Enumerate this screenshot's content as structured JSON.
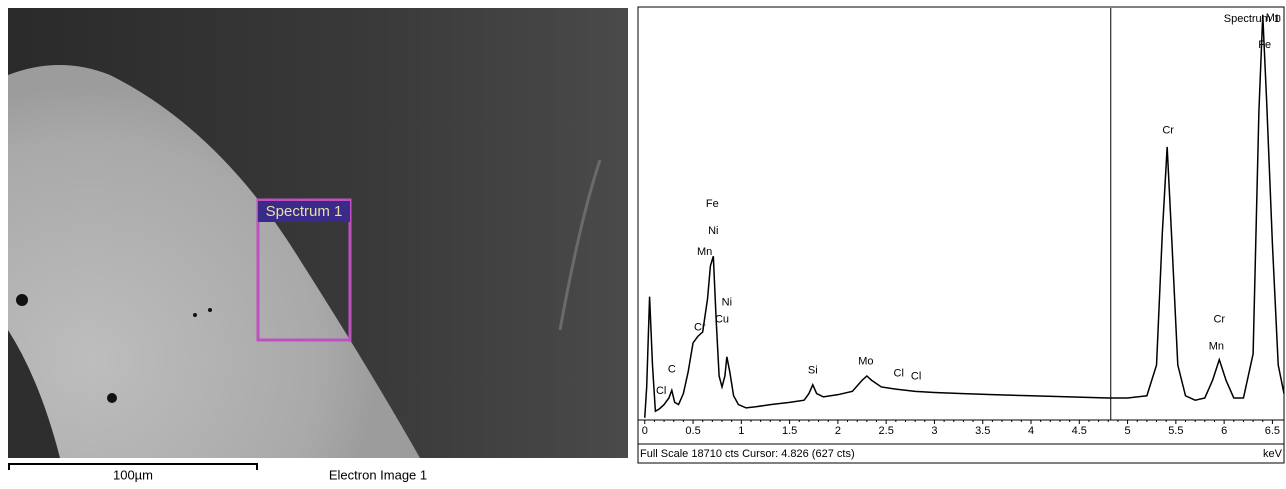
{
  "image": {
    "region_label": "Spectrum 1",
    "scale_bar": "100µm",
    "caption": "Electron Image 1"
  },
  "chart_data": {
    "type": "line",
    "x": [
      0,
      0.02,
      0.05,
      0.08,
      0.11,
      0.15,
      0.2,
      0.25,
      0.28,
      0.31,
      0.35,
      0.4,
      0.45,
      0.5,
      0.55,
      0.6,
      0.65,
      0.68,
      0.71,
      0.74,
      0.77,
      0.8,
      0.83,
      0.85,
      0.88,
      0.92,
      0.97,
      1.05,
      1.15,
      1.3,
      1.5,
      1.65,
      1.7,
      1.74,
      1.78,
      1.85,
      2.0,
      2.15,
      2.25,
      2.3,
      2.35,
      2.45,
      2.6,
      2.8,
      3.0,
      3.3,
      3.6,
      4.0,
      4.4,
      4.8,
      5.0,
      5.2,
      5.3,
      5.36,
      5.41,
      5.46,
      5.52,
      5.6,
      5.7,
      5.8,
      5.88,
      5.95,
      6.02,
      6.1,
      6.2,
      6.3,
      6.36,
      6.4,
      6.44,
      6.5,
      6.56,
      6.62
    ],
    "series": [
      {
        "name": "Spectrum 1",
        "color": "#000000",
        "values": [
          100,
          1500,
          5600,
          2500,
          400,
          500,
          700,
          1000,
          1350,
          800,
          700,
          1200,
          2200,
          3500,
          3800,
          4000,
          5500,
          7000,
          7440,
          4500,
          2000,
          1500,
          2000,
          2870,
          2200,
          1100,
          700,
          550,
          600,
          700,
          800,
          900,
          1200,
          1600,
          1200,
          1050,
          1150,
          1300,
          1800,
          2000,
          1800,
          1500,
          1400,
          1300,
          1250,
          1200,
          1150,
          1100,
          1050,
          1000,
          1000,
          1100,
          2500,
          8500,
          12400,
          8000,
          2500,
          1100,
          900,
          1000,
          1800,
          2740,
          1800,
          1000,
          1000,
          3000,
          14000,
          18400,
          14500,
          8000,
          2500,
          1200
        ]
      }
    ],
    "xlim": [
      -0.07,
      6.62
    ],
    "ylim": [
      0,
      18710
    ],
    "xticks": [
      0,
      0.5,
      1,
      1.5,
      2,
      2.5,
      3,
      3.5,
      4,
      4.5,
      5,
      5.5,
      6,
      6.5
    ],
    "x_label": "keV",
    "cursor": 4.826,
    "footer": "Full Scale 18710 cts Cursor: 4.826  (627 cts)",
    "annotations": [
      {
        "text": "Fe",
        "x": 0.7,
        "y": 9810
      },
      {
        "text": "Ni",
        "x": 0.71,
        "y": 8580
      },
      {
        "text": "Mn",
        "x": 0.62,
        "y": 7620
      },
      {
        "text": "Ni",
        "x": 0.85,
        "y": 5340
      },
      {
        "text": "Cu",
        "x": 0.8,
        "y": 4560
      },
      {
        "text": "Cr",
        "x": 0.57,
        "y": 4200
      },
      {
        "text": "C",
        "x": 0.28,
        "y": 2280
      },
      {
        "text": "Cl",
        "x": 0.17,
        "y": 1320
      },
      {
        "text": "Si",
        "x": 1.74,
        "y": 2240
      },
      {
        "text": "Mo",
        "x": 2.29,
        "y": 2650
      },
      {
        "text": "Cl",
        "x": 2.63,
        "y": 2100
      },
      {
        "text": "Cl",
        "x": 2.81,
        "y": 1960
      },
      {
        "text": "Cr",
        "x": 5.42,
        "y": 13140
      },
      {
        "text": "Cr",
        "x": 5.95,
        "y": 4560
      },
      {
        "text": "Mn",
        "x": 5.92,
        "y": 3330
      },
      {
        "text": "Fe",
        "x": 6.42,
        "y": 17020
      },
      {
        "text": "Mn",
        "x": 6.51,
        "y": 18250
      }
    ]
  }
}
